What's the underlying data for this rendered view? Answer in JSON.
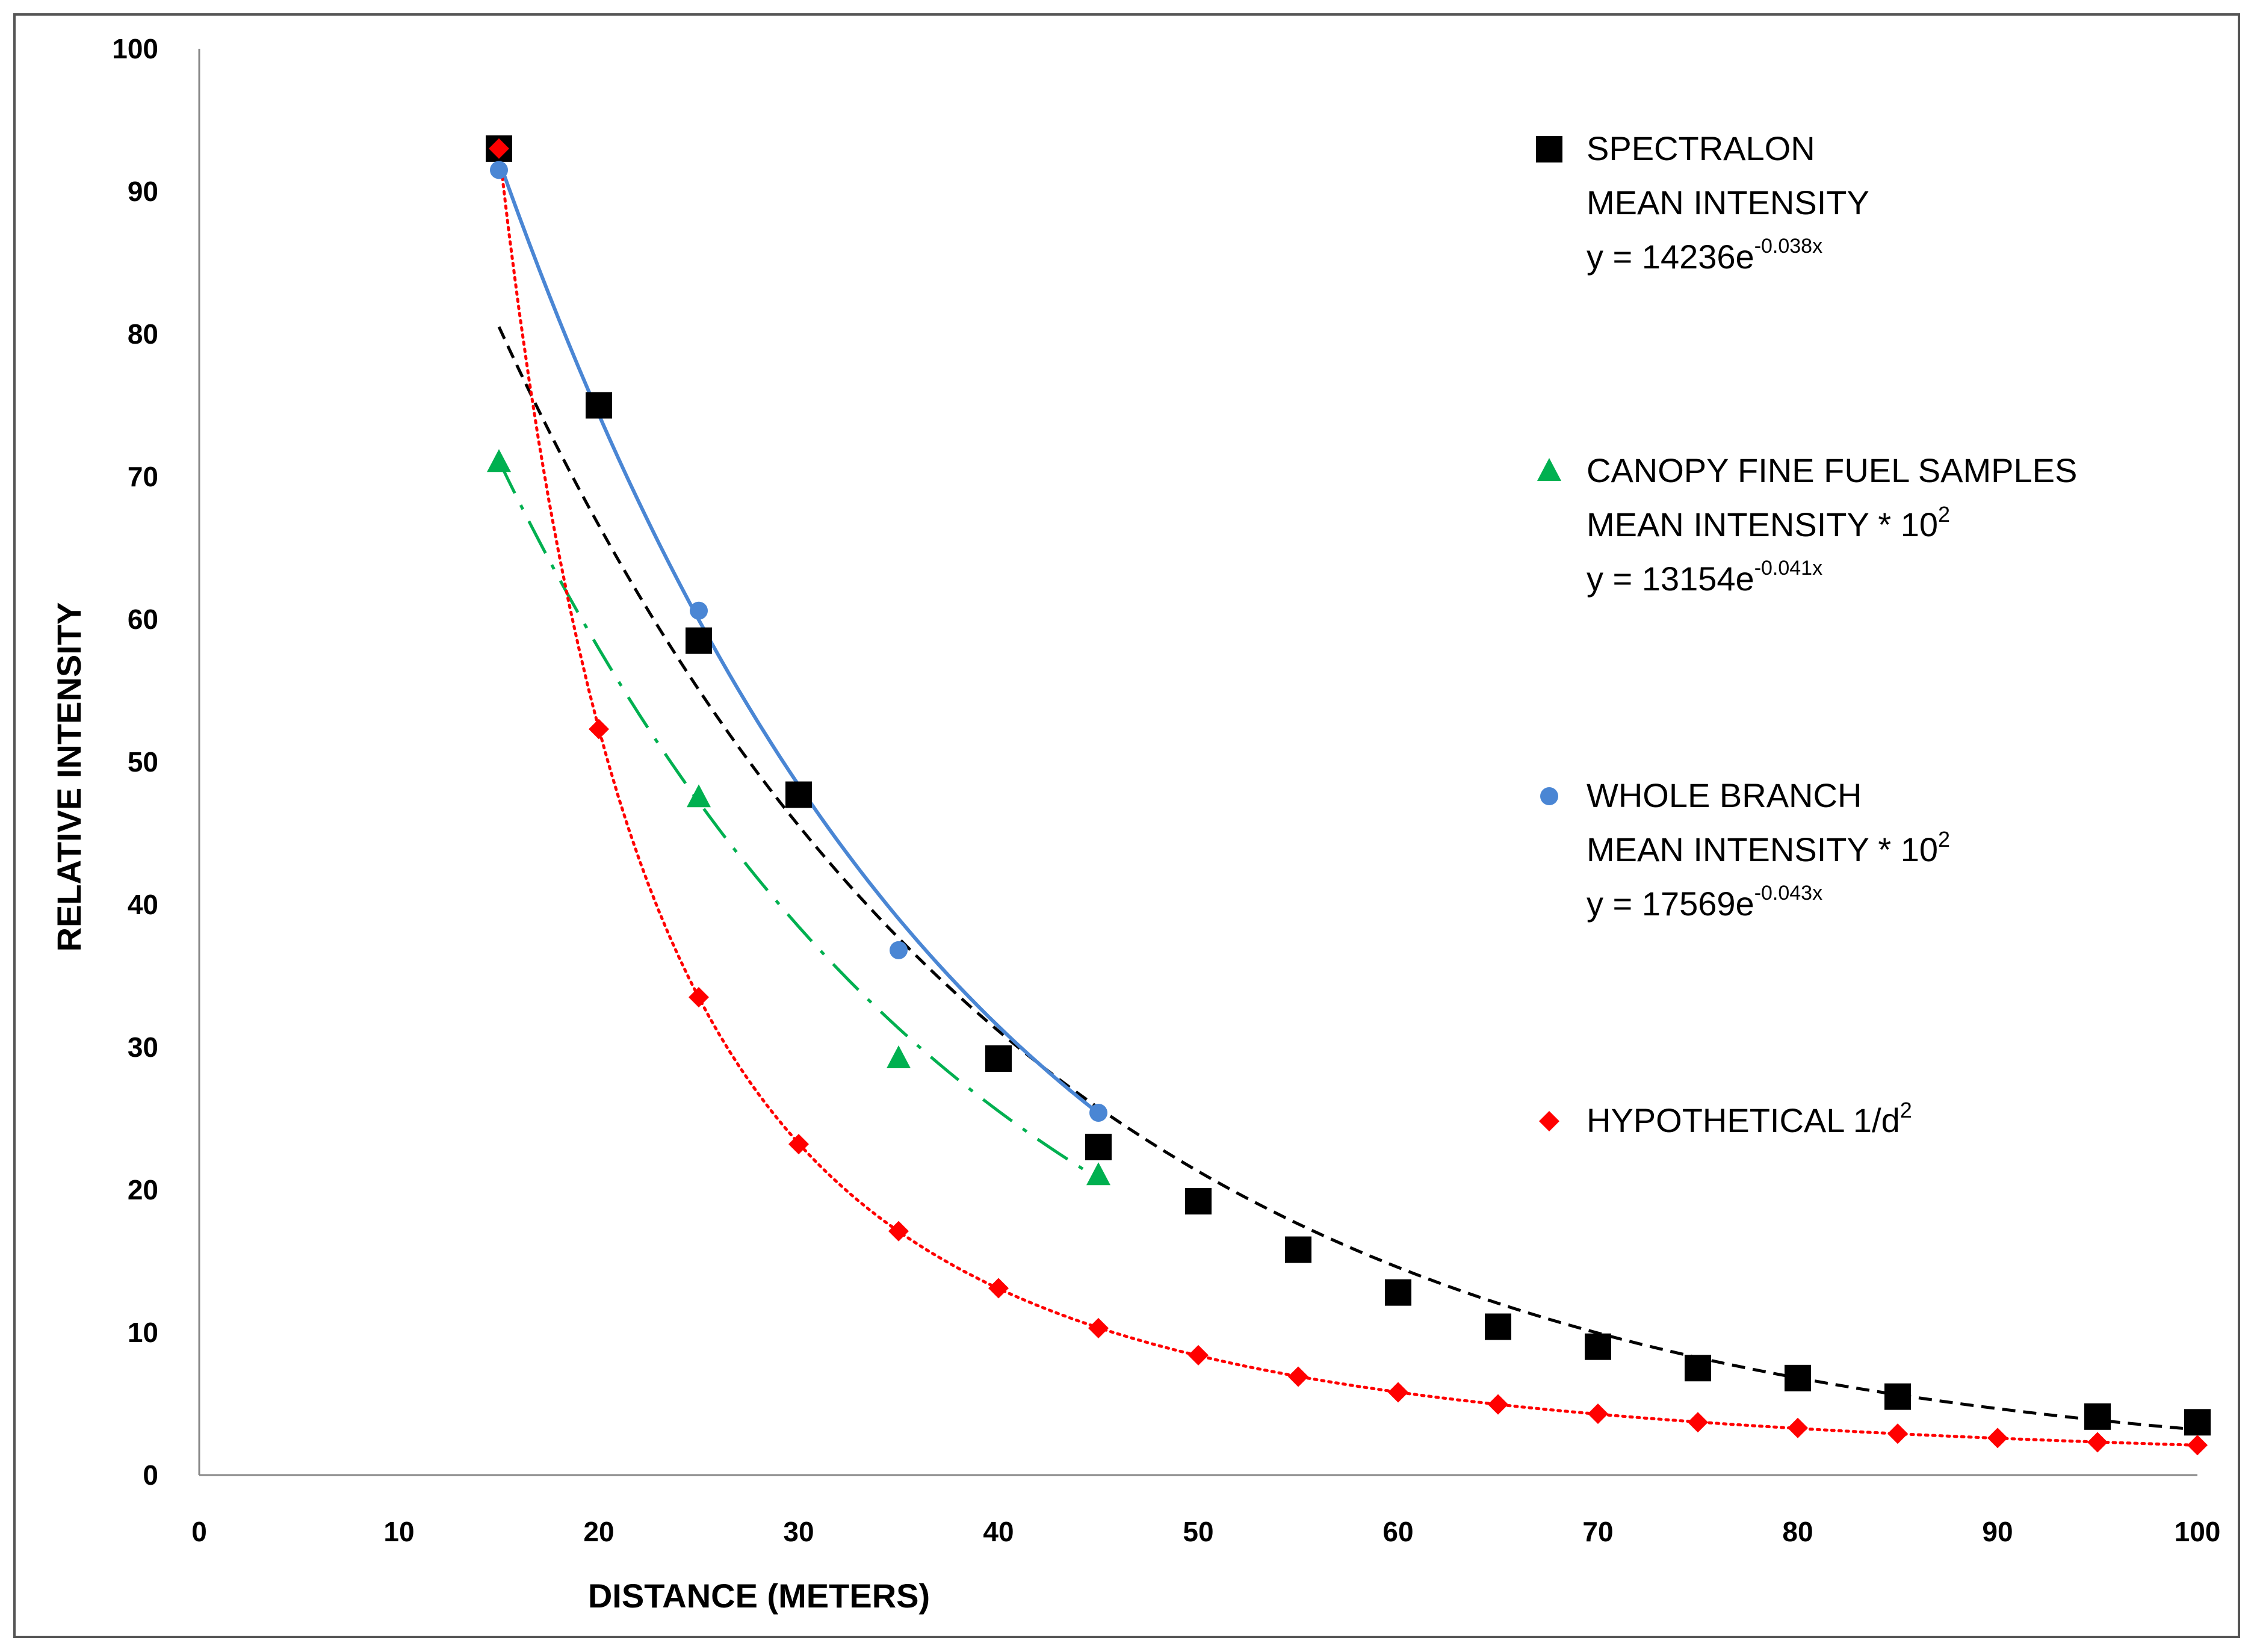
{
  "chart_data": {
    "type": "scatter",
    "title": "",
    "xlabel": "DISTANCE (METERS)",
    "ylabel": "RELATIVE INTENSITY",
    "xlim": [
      0,
      100
    ],
    "ylim": [
      0,
      100
    ],
    "xticks": [
      0,
      10,
      20,
      30,
      40,
      50,
      60,
      70,
      80,
      90,
      100
    ],
    "yticks": [
      0,
      10,
      20,
      30,
      40,
      50,
      60,
      70,
      80,
      90,
      100
    ],
    "grid": false,
    "legend_position": "right",
    "series": [
      {
        "key": "spectralon",
        "legend_lines": [
          "SPECTRALON",
          "MEAN INTENSITY"
        ],
        "equation": {
          "base": "y = 14236e",
          "exponent": "-0.038x"
        },
        "marker": "square",
        "color": "#000000",
        "x": [
          15,
          20,
          25,
          30,
          40,
          45,
          50,
          55,
          60,
          65,
          70,
          75,
          80,
          85,
          95,
          100
        ],
        "y": [
          93,
          75,
          58.5,
          47.7,
          29.2,
          23.0,
          19.2,
          15.8,
          12.8,
          10.4,
          9.0,
          7.5,
          6.8,
          5.5,
          4.1,
          3.7
        ],
        "trendline": {
          "type": "exponential",
          "a": 142.36,
          "b": -0.038,
          "x_range": [
            15,
            100
          ],
          "style": "dashed",
          "color": "#000000"
        }
      },
      {
        "key": "canopy",
        "legend_lines": [
          "CANOPY FINE FUEL SAMPLES",
          "MEAN INTENSITY * 10"
        ],
        "legend_sup": "2",
        "equation": {
          "base": "y = 13154e",
          "exponent": "-0.041x"
        },
        "marker": "triangle",
        "color": "#00b050",
        "x": [
          15,
          25,
          35,
          45
        ],
        "y": [
          71,
          47.5,
          29.2,
          21.0
        ],
        "trendline": {
          "type": "exponential",
          "a": 131.54,
          "b": -0.041,
          "x_range": [
            15,
            45
          ],
          "style": "dash-dot",
          "color": "#00b050"
        }
      },
      {
        "key": "branch",
        "legend_lines": [
          "WHOLE BRANCH",
          "MEAN INTENSITY * 10"
        ],
        "legend_sup": "2",
        "equation": {
          "base": "y = 17569e",
          "exponent": "-0.043x"
        },
        "marker": "circle",
        "color": "#4a86d4",
        "x": [
          15,
          25,
          35,
          45
        ],
        "y": [
          91.5,
          60.6,
          36.8,
          25.4
        ],
        "trendline": {
          "type": "exponential",
          "a": 175.69,
          "b": -0.043,
          "x_range": [
            15,
            45
          ],
          "style": "solid",
          "color": "#4a86d4"
        }
      },
      {
        "key": "hypothetical",
        "legend_lines": [
          "HYPOTHETICAL 1/d"
        ],
        "legend_sup": "2",
        "marker": "diamond",
        "color": "#ff0000",
        "x": [
          15,
          20,
          25,
          30,
          35,
          40,
          45,
          50,
          55,
          60,
          65,
          70,
          75,
          80,
          85,
          90,
          95,
          100
        ],
        "y": [
          93,
          52.3,
          33.5,
          23.2,
          17.1,
          13.1,
          10.3,
          8.4,
          6.9,
          5.8,
          4.95,
          4.3,
          3.7,
          3.3,
          2.9,
          2.6,
          2.3,
          2.1
        ],
        "trendline": {
          "type": "power",
          "a": 20925,
          "p": -2,
          "x_range": [
            15,
            100
          ],
          "style": "dotted",
          "color": "#ff0000"
        }
      }
    ]
  }
}
